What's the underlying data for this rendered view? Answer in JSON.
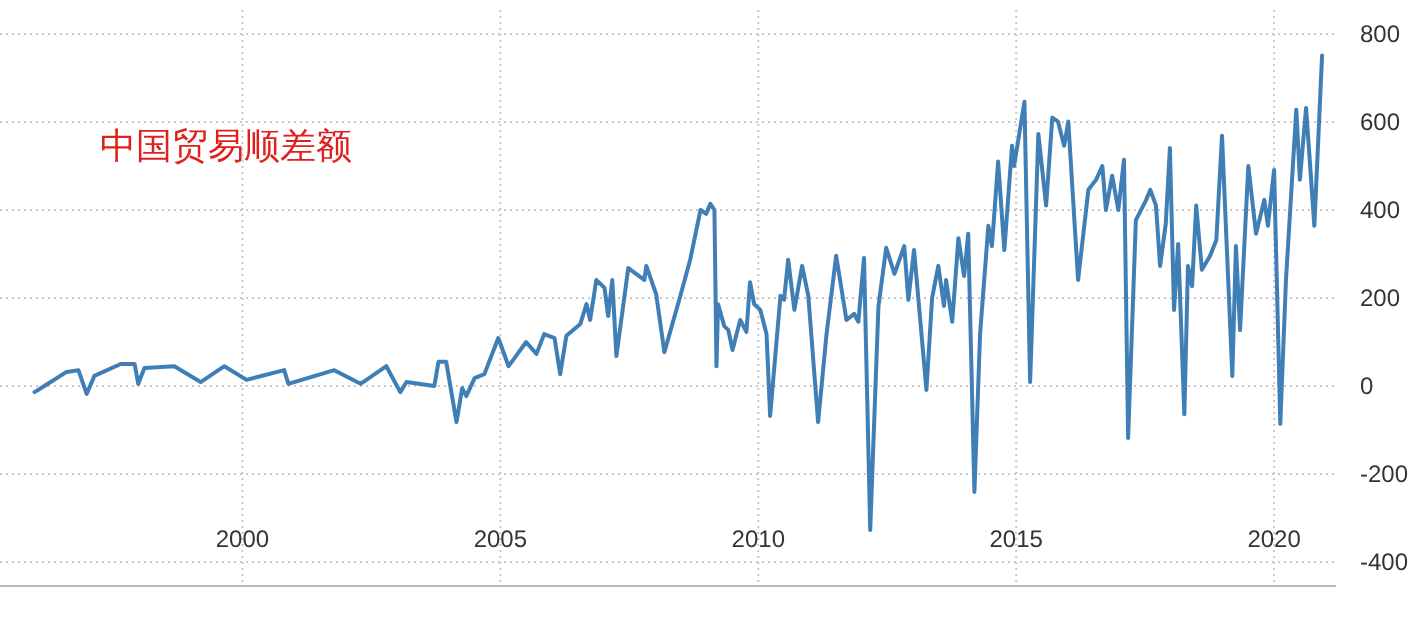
{
  "chart_data": {
    "type": "line",
    "title": "中国贸易顺差额",
    "x": [
      1995.97,
      1996.16,
      1996.59,
      1996.82,
      1996.98,
      1997.13,
      1997.64,
      1997.91,
      1997.98,
      1998.1,
      1998.68,
      1999.19,
      1999.65,
      2000.08,
      2000.81,
      2000.89,
      2001.78,
      2002.29,
      2002.79,
      2003.06,
      2003.18,
      2003.72,
      2003.8,
      2003.95,
      2004.15,
      2004.26,
      2004.34,
      2004.5,
      2004.69,
      2004.96,
      2005.16,
      2005.5,
      2005.7,
      2005.85,
      2006.05,
      2006.16,
      2006.28,
      2006.55,
      2006.67,
      2006.74,
      2006.86,
      2007.02,
      2007.09,
      2007.17,
      2007.25,
      2007.48,
      2007.79,
      2007.83,
      2008.02,
      2008.18,
      2008.49,
      2008.68,
      2008.88,
      2008.99,
      2009.07,
      2009.15,
      2009.19,
      2009.22,
      2009.34,
      2009.42,
      2009.5,
      2009.65,
      2009.77,
      2009.84,
      2009.92,
      2010.04,
      2010.16,
      2010.23,
      2010.43,
      2010.5,
      2010.58,
      2010.7,
      2010.85,
      2010.97,
      2011.16,
      2011.32,
      2011.51,
      2011.71,
      2011.86,
      2011.94,
      2012.05,
      2012.17,
      2012.33,
      2012.48,
      2012.64,
      2012.83,
      2012.91,
      2013.02,
      2013.26,
      2013.37,
      2013.49,
      2013.6,
      2013.64,
      2013.76,
      2013.88,
      2013.99,
      2014.07,
      2014.19,
      2014.3,
      2014.46,
      2014.53,
      2014.65,
      2014.77,
      2014.92,
      2014.96,
      2015.16,
      2015.27,
      2015.43,
      2015.58,
      2015.7,
      2015.81,
      2015.93,
      2016.01,
      2016.2,
      2016.4,
      2016.55,
      2016.67,
      2016.74,
      2016.86,
      2016.98,
      2017.09,
      2017.17,
      2017.32,
      2017.52,
      2017.6,
      2017.71,
      2017.79,
      2017.9,
      2017.98,
      2018.06,
      2018.14,
      2018.26,
      2018.33,
      2018.41,
      2018.49,
      2018.6,
      2018.76,
      2018.88,
      2018.99,
      2019.19,
      2019.26,
      2019.34,
      2019.5,
      2019.65,
      2019.81,
      2019.88,
      2020.0,
      2020.12,
      2020.23,
      2020.43,
      2020.5,
      2020.62,
      2020.78,
      2020.93
    ],
    "series": [
      {
        "color": "#3f7fb6",
        "values": [
          -14,
          0,
          32,
          36,
          -18,
          23,
          50,
          50,
          5,
          41,
          45,
          9,
          45,
          14,
          36,
          5,
          36,
          5,
          45,
          -14,
          9,
          0,
          55,
          55,
          -82,
          -5,
          -23,
          18,
          27,
          109,
          45,
          100,
          73,
          118,
          109,
          27,
          114,
          141,
          186,
          150,
          241,
          223,
          159,
          241,
          68,
          268,
          241,
          273,
          209,
          77,
          205,
          287,
          400,
          391,
          414,
          400,
          45,
          186,
          136,
          127,
          82,
          150,
          123,
          236,
          186,
          173,
          118,
          -68,
          205,
          196,
          287,
          173,
          273,
          205,
          -82,
          114,
          296,
          150,
          164,
          146,
          291,
          -327,
          182,
          314,
          255,
          318,
          196,
          309,
          -9,
          200,
          273,
          182,
          241,
          146,
          336,
          250,
          346,
          -241,
          118,
          364,
          318,
          510,
          309,
          546,
          500,
          646,
          9,
          573,
          410,
          610,
          601,
          546,
          601,
          241,
          446,
          469,
          500,
          400,
          478,
          400,
          514,
          -118,
          377,
          423,
          446,
          410,
          273,
          369,
          541,
          173,
          323,
          -64,
          273,
          227,
          410,
          264,
          296,
          332,
          569,
          23,
          318,
          127,
          500,
          346,
          423,
          364,
          491,
          -86,
          241,
          628,
          469,
          632,
          364,
          751
        ]
      }
    ],
    "xlim": [
      1995.3,
      2021.2
    ],
    "xticks": [
      2000,
      2005,
      2010,
      2015,
      2020
    ],
    "ylim": [
      -400,
      800
    ],
    "yticks": [
      -400,
      -200,
      0,
      200,
      400,
      600,
      800
    ],
    "grid": true,
    "marker": "none",
    "line_style": "solid"
  }
}
